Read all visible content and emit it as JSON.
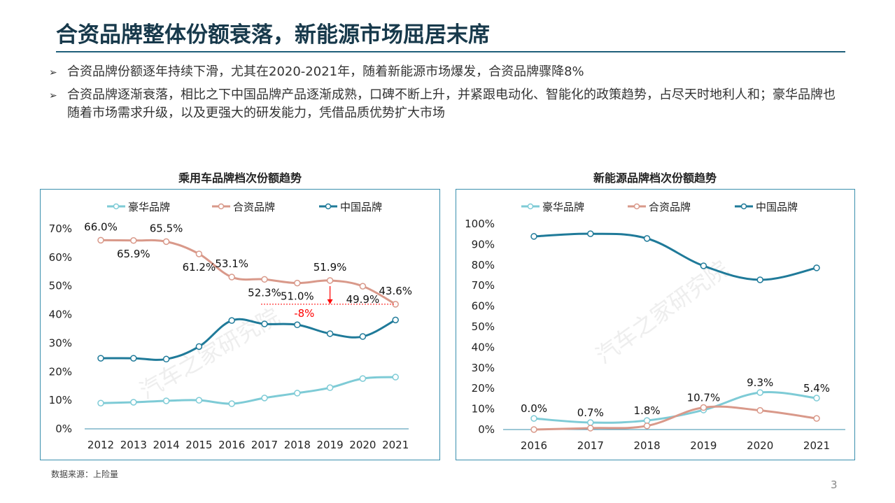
{
  "header": {
    "title": "合资品牌整体份额衰落，新能源市场屈居末席"
  },
  "bullets": [
    {
      "icon": "arrow-bullet-icon",
      "text": "合资品牌份额逐年持续下滑，尤其在2020-2021年，随着新能源市场爆发，合资品牌骤降8%"
    },
    {
      "icon": "arrow-bullet-icon",
      "text": "合资品牌逐渐衰落，相比之下中国品牌产品逐渐成熟，口碑不断上升，并紧跟电动化、智能化的政策趋势，占尽天时地利人和；豪华品牌也随着市场需求升级，以及更强大的研发能力，凭借品质优势扩大市场"
    }
  ],
  "watermark": "汽车之家研究院",
  "source": "数据来源：上险量",
  "page_number": "3",
  "colors": {
    "luxury": "#7ecbd6",
    "jv": "#d9998a",
    "china": "#1f7a99",
    "annotation": "#ff0000",
    "title": "#17394b"
  },
  "chart_data": [
    {
      "type": "line",
      "title": "乘用车品牌档次份额趋势",
      "categories": [
        "2012",
        "2013",
        "2014",
        "2015",
        "2016",
        "2017",
        "2018",
        "2019",
        "2020",
        "2021"
      ],
      "ylim": [
        0,
        70
      ],
      "yticks": [
        "0%",
        "10%",
        "20%",
        "30%",
        "40%",
        "50%",
        "60%",
        "70%"
      ],
      "legend": "top",
      "grid": false,
      "series": [
        {
          "name": "豪华品牌",
          "values": [
            9.0,
            9.3,
            9.8,
            10.0,
            8.8,
            10.8,
            12.5,
            14.4,
            17.6,
            18.1
          ]
        },
        {
          "name": "合资品牌",
          "values": [
            66.0,
            65.9,
            65.5,
            61.2,
            53.1,
            52.3,
            51.0,
            51.9,
            49.9,
            43.6
          ],
          "labels": [
            "66.0%",
            "65.9%",
            "65.5%",
            "61.2%",
            "53.1%",
            "52.3%",
            "51.0%",
            "51.9%",
            "49.9%",
            "43.6%"
          ]
        },
        {
          "name": "中国品牌",
          "values": [
            24.7,
            24.7,
            24.4,
            28.8,
            37.9,
            36.7,
            36.4,
            33.3,
            32.3,
            38.1
          ]
        }
      ],
      "annotation": {
        "text": "-8%",
        "from_year": "2019",
        "to_value": 43.6
      }
    },
    {
      "type": "line",
      "title": "新能源品牌档次份额趋势",
      "categories": [
        "2016",
        "2017",
        "2018",
        "2019",
        "2020",
        "2021"
      ],
      "ylim": [
        0,
        100
      ],
      "yticks": [
        "0%",
        "10%",
        "20%",
        "30%",
        "40%",
        "50%",
        "60%",
        "70%",
        "80%",
        "90%",
        "100%"
      ],
      "legend": "top",
      "grid": false,
      "series": [
        {
          "name": "豪华品牌",
          "values": [
            5.4,
            3.4,
            4.4,
            9.5,
            18.0,
            15.3
          ]
        },
        {
          "name": "合资品牌",
          "values": [
            0.0,
            0.7,
            1.8,
            10.7,
            9.3,
            5.4
          ],
          "labels": [
            "0.0%",
            "0.7%",
            "1.8%",
            "10.7%",
            "9.3%",
            "5.4%"
          ]
        },
        {
          "name": "中国品牌",
          "values": [
            93.9,
            95.2,
            92.9,
            79.6,
            72.8,
            78.6
          ]
        }
      ]
    }
  ]
}
